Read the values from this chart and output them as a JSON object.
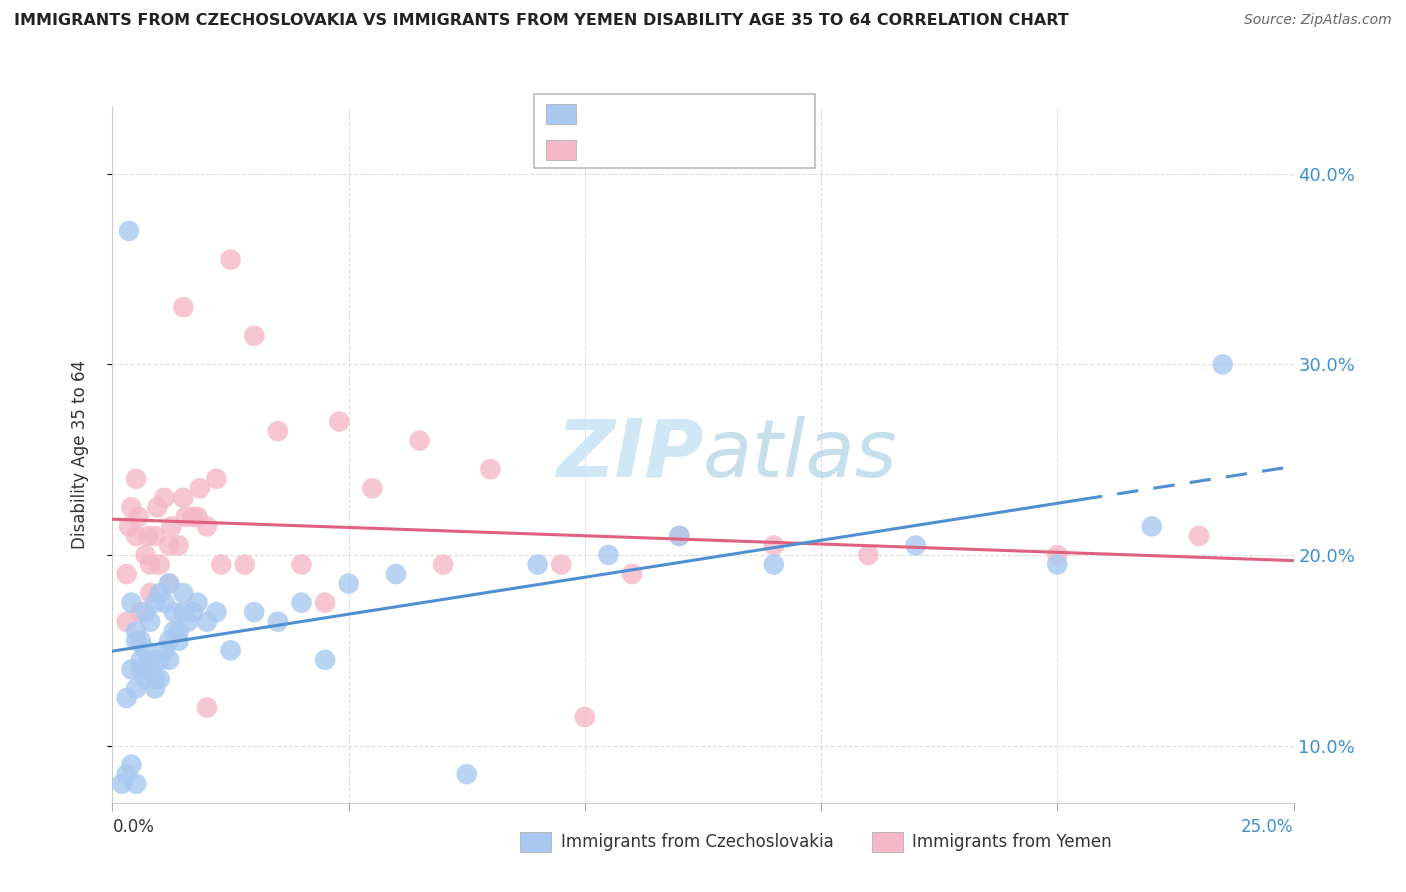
{
  "title": "IMMIGRANTS FROM CZECHOSLOVAKIA VS IMMIGRANTS FROM YEMEN DISABILITY AGE 35 TO 64 CORRELATION CHART",
  "source": "Source: ZipAtlas.com",
  "ylabel": "Disability Age 35 to 64",
  "xlim": [
    0.0,
    25.0
  ],
  "ylim": [
    7.0,
    43.5
  ],
  "yticks": [
    10.0,
    20.0,
    30.0,
    40.0
  ],
  "color_czech": "#a8c8f0",
  "color_yemen": "#f5b8c8",
  "color_czech_line": "#5090d0",
  "color_yemen_line": "#e06080",
  "color_blue_text": "#4090d0",
  "color_pink_text": "#e06080",
  "watermark_color": "#d0e8f5",
  "czech_x": [
    0.35,
    0.5,
    0.6,
    0.7,
    0.8,
    0.9,
    1.0,
    1.1,
    1.2,
    1.3,
    1.4,
    1.5,
    0.4,
    0.5,
    0.6,
    0.7,
    0.8,
    0.9,
    1.0,
    1.1,
    1.2,
    1.3,
    1.5,
    1.6,
    1.7,
    0.3,
    0.4,
    0.5,
    0.6,
    0.7,
    0.8,
    0.9,
    1.0,
    1.2,
    1.4,
    1.8,
    2.0,
    2.2,
    2.5,
    3.0,
    3.5,
    4.0,
    4.5,
    5.0,
    6.0,
    7.5,
    9.0,
    10.5,
    12.0,
    14.0,
    17.0,
    20.0,
    22.0,
    23.5,
    0.2,
    0.3,
    0.4,
    0.5
  ],
  "czech_y": [
    37.0,
    15.5,
    14.0,
    13.5,
    14.5,
    13.0,
    13.5,
    15.0,
    14.5,
    16.0,
    15.5,
    17.0,
    17.5,
    16.0,
    15.5,
    17.0,
    16.5,
    17.5,
    18.0,
    17.5,
    18.5,
    17.0,
    18.0,
    16.5,
    17.0,
    12.5,
    14.0,
    13.0,
    14.5,
    15.0,
    14.0,
    13.5,
    14.5,
    15.5,
    16.0,
    17.5,
    16.5,
    17.0,
    15.0,
    17.0,
    16.5,
    17.5,
    14.5,
    18.5,
    19.0,
    8.5,
    19.5,
    20.0,
    21.0,
    19.5,
    20.5,
    19.5,
    21.5,
    30.0,
    8.0,
    8.5,
    9.0,
    8.0
  ],
  "yemen_x": [
    2.5,
    1.5,
    3.0,
    0.3,
    0.5,
    0.7,
    0.9,
    1.0,
    1.2,
    1.5,
    1.8,
    2.0,
    0.4,
    0.6,
    0.8,
    1.1,
    1.4,
    1.7,
    2.2,
    2.8,
    3.5,
    4.5,
    0.35,
    0.55,
    0.75,
    0.95,
    1.25,
    1.55,
    1.85,
    2.3,
    5.5,
    7.0,
    9.5,
    10.0,
    12.0,
    14.0,
    16.0,
    20.0,
    23.0,
    0.3,
    0.5,
    0.8,
    1.2,
    2.0,
    4.0,
    6.5,
    8.0,
    4.8,
    11.0
  ],
  "yemen_y": [
    35.5,
    33.0,
    31.5,
    19.0,
    21.0,
    20.0,
    21.0,
    19.5,
    20.5,
    23.0,
    22.0,
    21.5,
    22.5,
    17.0,
    19.5,
    23.0,
    20.5,
    22.0,
    24.0,
    19.5,
    26.5,
    17.5,
    21.5,
    22.0,
    21.0,
    22.5,
    21.5,
    22.0,
    23.5,
    19.5,
    23.5,
    19.5,
    19.5,
    11.5,
    21.0,
    20.5,
    20.0,
    20.0,
    21.0,
    16.5,
    24.0,
    18.0,
    18.5,
    12.0,
    19.5,
    26.0,
    24.5,
    27.0,
    19.0
  ]
}
